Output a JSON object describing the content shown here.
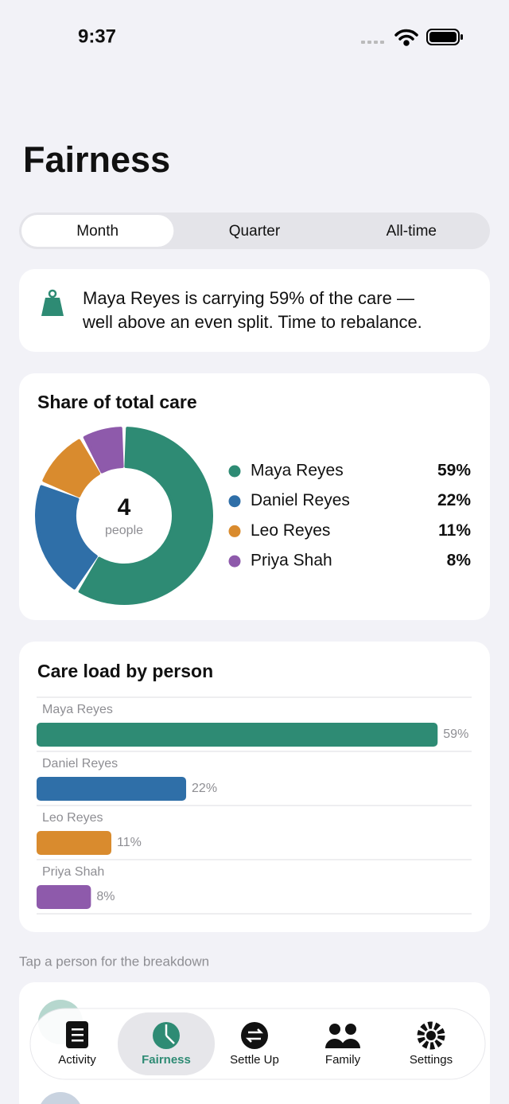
{
  "status_bar": {
    "time": "9:37"
  },
  "header": {
    "title": "Fairness"
  },
  "segmented": {
    "options": [
      "Month",
      "Quarter",
      "All-time"
    ],
    "selected": 0
  },
  "alert": {
    "lines": [
      "Maya Reyes is carrying 59% of the care —",
      "well above an even split. Time to rebalance."
    ]
  },
  "chart_data": [
    {
      "type": "pie",
      "title": "Share of total care",
      "center_value": 4,
      "center_label": "people",
      "categories": [
        "Maya Reyes",
        "Daniel Reyes",
        "Leo Reyes",
        "Priya Shah"
      ],
      "values": [
        59,
        22,
        11,
        8
      ],
      "value_labels": [
        "59%",
        "22%",
        "11%",
        "8%"
      ],
      "colors": [
        "#2e8b74",
        "#2f6fa8",
        "#d98b2e",
        "#8e5aab"
      ]
    },
    {
      "type": "bar",
      "orientation": "horizontal",
      "title": "Care load by person",
      "categories": [
        "Maya Reyes",
        "Daniel Reyes",
        "Leo Reyes",
        "Priya Shah"
      ],
      "values": [
        59,
        22,
        11,
        8
      ],
      "value_labels": [
        "59%",
        "22%",
        "11%",
        "8%"
      ],
      "colors": [
        "#2e8b74",
        "#2f6fa8",
        "#d98b2e",
        "#8e5aab"
      ],
      "xlim": [
        0,
        64
      ]
    }
  ],
  "hint": "Tap a person for the breakdown",
  "tab_bar": {
    "items": [
      "Activity",
      "Fairness",
      "Settle Up",
      "Family",
      "Settings"
    ],
    "selected": 1
  }
}
